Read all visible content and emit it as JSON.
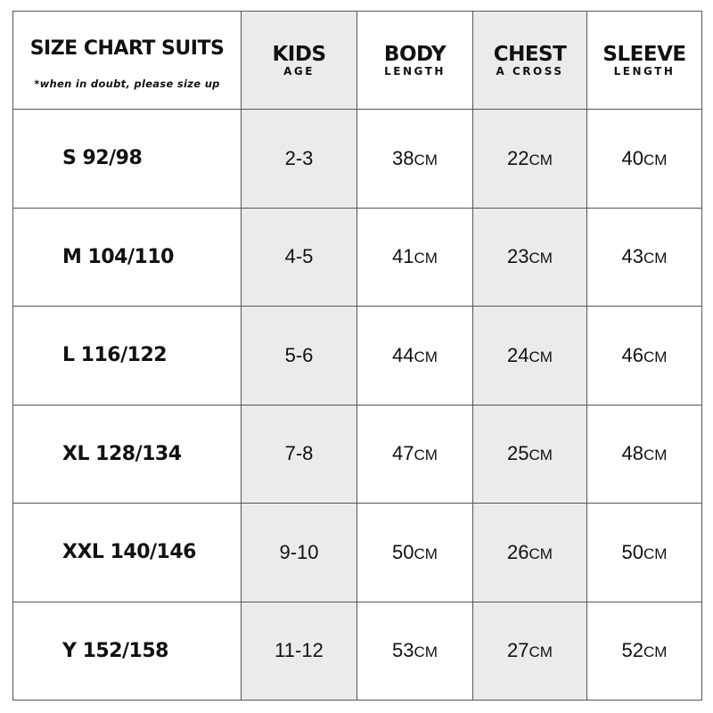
{
  "header": {
    "title": "SIZE CHART SUITS",
    "note": "*when in doubt, please size up",
    "columns": [
      {
        "main": "KIDS",
        "sub": "AGE",
        "shaded": true
      },
      {
        "main": "BODY",
        "sub": "LENGTH",
        "shaded": false
      },
      {
        "main": "CHEST",
        "sub": "A CROSS",
        "shaded": true
      },
      {
        "main": "SLEEVE",
        "sub": "LENGTH",
        "shaded": false
      }
    ]
  },
  "unit": "CM",
  "shade_color": "#ebebeb",
  "rows": [
    {
      "size": "S 92/98",
      "age": "2-3",
      "body": "38",
      "chest": "22",
      "sleeve": "40"
    },
    {
      "size": "M 104/110",
      "age": "4-5",
      "body": "41",
      "chest": "23",
      "sleeve": "43"
    },
    {
      "size": "L 116/122",
      "age": "5-6",
      "body": "44",
      "chest": "24",
      "sleeve": "46"
    },
    {
      "size": "XL 128/134",
      "age": "7-8",
      "body": "47",
      "chest": "25",
      "sleeve": "48"
    },
    {
      "size": "XXL 140/146",
      "age": "9-10",
      "body": "50",
      "chest": "26",
      "sleeve": "50"
    },
    {
      "size": "Y 152/158",
      "age": "11-12",
      "body": "53",
      "chest": "27",
      "sleeve": "52"
    }
  ]
}
